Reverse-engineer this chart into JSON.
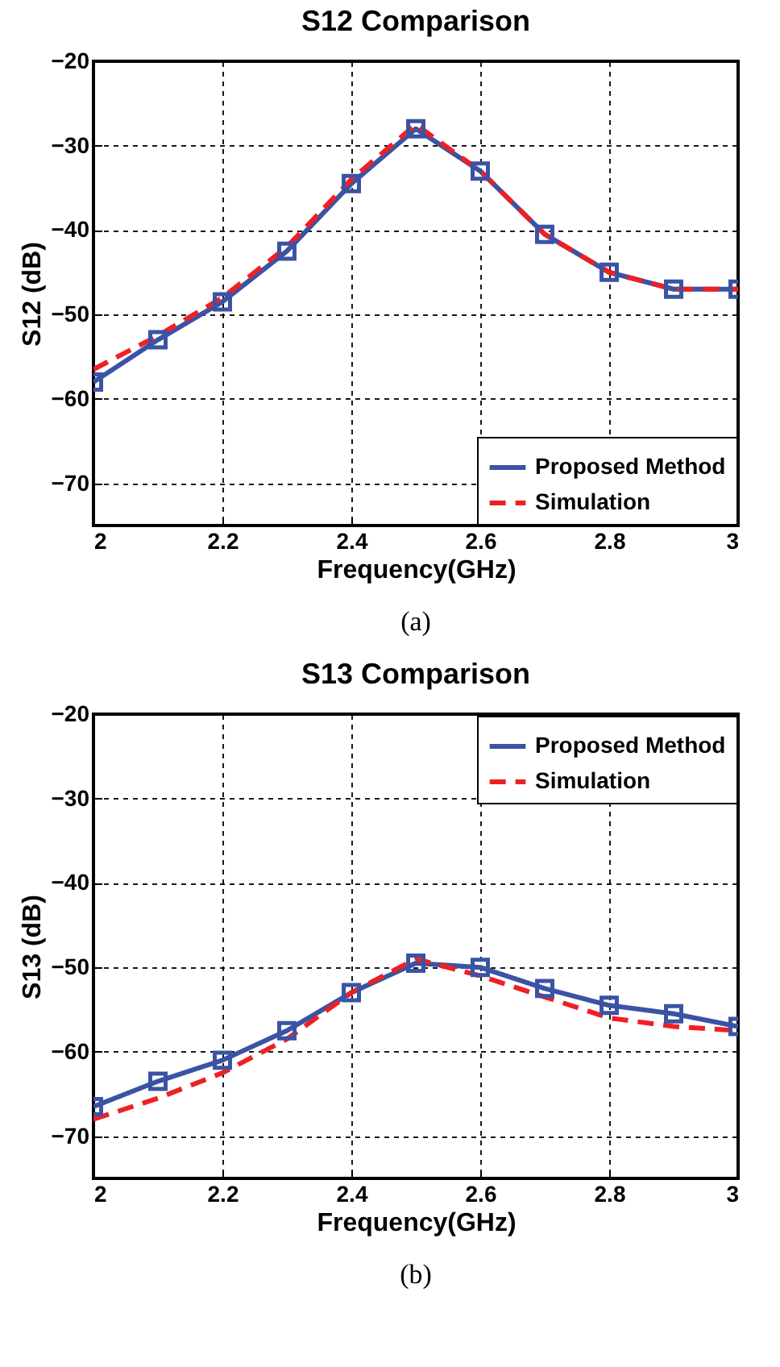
{
  "chart_data": [
    {
      "type": "line",
      "title": "S12 Comparison",
      "xlabel": "Frequency(GHz)",
      "ylabel": "S12 (dB)",
      "annotations": [
        "(a)"
      ],
      "x": [
        2,
        2.1,
        2.2,
        2.3,
        2.4,
        2.5,
        2.6,
        2.7,
        2.8,
        2.9,
        3
      ],
      "xlim": [
        2,
        3
      ],
      "xticks": [
        2,
        2.2,
        2.4,
        2.6,
        2.8,
        3
      ],
      "ylim": [
        -75,
        -20
      ],
      "yticks": [
        -70,
        -60,
        -50,
        -40,
        -30,
        -20
      ],
      "grid": true,
      "legend": "bottom right",
      "series": [
        {
          "name": "Proposed Method",
          "color": "#3a53a4",
          "marker": "square",
          "line_style": "solid",
          "values": [
            -58,
            -53,
            -48.5,
            -42.5,
            -34.5,
            -28,
            -33,
            -40.5,
            -45,
            -47,
            -47
          ]
        },
        {
          "name": "Simulation",
          "color": "#ee2024",
          "marker": "none",
          "line_style": "dashed",
          "values": [
            -56.5,
            -52.5,
            -48,
            -42,
            -34,
            -27.5,
            -33,
            -40.5,
            -45,
            -47,
            -47
          ]
        }
      ]
    },
    {
      "type": "line",
      "title": "S13 Comparison",
      "xlabel": "Frequency(GHz)",
      "ylabel": "S13 (dB)",
      "annotations": [
        "(b)"
      ],
      "x": [
        2,
        2.1,
        2.2,
        2.3,
        2.4,
        2.5,
        2.6,
        2.7,
        2.8,
        2.9,
        3
      ],
      "xlim": [
        2,
        3
      ],
      "xticks": [
        2,
        2.2,
        2.4,
        2.6,
        2.8,
        3
      ],
      "ylim": [
        -75,
        -20
      ],
      "yticks": [
        -70,
        -60,
        -50,
        -40,
        -30,
        -20
      ],
      "grid": true,
      "legend": "top right",
      "series": [
        {
          "name": "Proposed Method",
          "color": "#3a53a4",
          "marker": "square",
          "line_style": "solid",
          "values": [
            -66.5,
            -63.5,
            -61,
            -57.5,
            -53,
            -49.5,
            -50,
            -52.5,
            -54.5,
            -55.5,
            -57
          ]
        },
        {
          "name": "Simulation",
          "color": "#ee2024",
          "marker": "none",
          "line_style": "dashed",
          "values": [
            -68,
            -65.5,
            -62.5,
            -58.5,
            -53,
            -49,
            -51,
            -53.5,
            -56,
            -57,
            -57.5
          ]
        }
      ]
    }
  ]
}
